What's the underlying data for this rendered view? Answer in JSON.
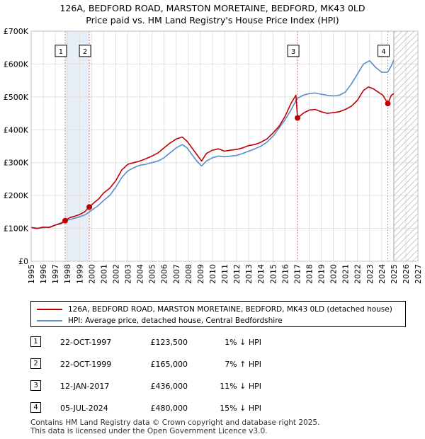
{
  "title_line1": "126A, BEDFORD ROAD, MARSTON MORETAINE, BEDFORD, MK43 0LD",
  "title_line2": "Price paid vs. HM Land Registry's House Price Index (HPI)",
  "colors": {
    "property": "#c00000",
    "hpi": "#5b8cc8",
    "grid": "#e0e0e0",
    "shade": "#e8eef8",
    "vline": "#e08080"
  },
  "chart_data": {
    "type": "line",
    "ylim": [
      0,
      700000
    ],
    "xlim": [
      1995,
      2027
    ],
    "yticks": [
      {
        "value": 0,
        "label": "£0"
      },
      {
        "value": 100000,
        "label": "£100K"
      },
      {
        "value": 200000,
        "label": "£200K"
      },
      {
        "value": 300000,
        "label": "£300K"
      },
      {
        "value": 400000,
        "label": "£400K"
      },
      {
        "value": 500000,
        "label": "£500K"
      },
      {
        "value": 600000,
        "label": "£600K"
      },
      {
        "value": 700000,
        "label": "£700K"
      }
    ],
    "xticks": [
      "1995",
      "1996",
      "1997",
      "1998",
      "1999",
      "2000",
      "2001",
      "2002",
      "2003",
      "2004",
      "2005",
      "2006",
      "2007",
      "2008",
      "2009",
      "2010",
      "2011",
      "2012",
      "2013",
      "2014",
      "2015",
      "2016",
      "2017",
      "2018",
      "2019",
      "2020",
      "2021",
      "2022",
      "2023",
      "2024",
      "2025",
      "2026",
      "2027"
    ],
    "forecast_start": 2025.0,
    "shaded_periods": [
      [
        1997.81,
        1999.81
      ]
    ],
    "series": [
      {
        "name": "126A, BEDFORD ROAD, MARSTON MORETAINE, BEDFORD, MK43 0LD (detached house)",
        "x": [
          1995.0,
          1995.5,
          1996.0,
          1996.5,
          1997.0,
          1997.5,
          1997.81,
          1998.2,
          1998.6,
          1999.0,
          1999.4,
          1999.81,
          2000.2,
          2000.6,
          2001.0,
          2001.5,
          2002.0,
          2002.5,
          2003.0,
          2003.5,
          2004.0,
          2004.5,
          2005.0,
          2005.5,
          2006.0,
          2006.5,
          2007.0,
          2007.5,
          2007.9,
          2008.3,
          2008.7,
          2009.1,
          2009.5,
          2010.0,
          2010.5,
          2011.0,
          2011.5,
          2012.0,
          2012.5,
          2013.0,
          2013.5,
          2014.0,
          2014.5,
          2015.0,
          2015.5,
          2016.0,
          2016.5,
          2016.9,
          2017.04,
          2017.5,
          2018.0,
          2018.5,
          2019.0,
          2019.5,
          2020.0,
          2020.5,
          2021.0,
          2021.5,
          2022.0,
          2022.5,
          2022.9,
          2023.3,
          2023.7,
          2024.1,
          2024.51,
          2024.8,
          2025.0
        ],
        "y": [
          103000,
          100000,
          104000,
          103000,
          110000,
          115000,
          123500,
          133000,
          137000,
          142000,
          150000,
          165000,
          178000,
          190000,
          208000,
          222000,
          245000,
          278000,
          295000,
          300000,
          305000,
          312000,
          320000,
          330000,
          345000,
          360000,
          372000,
          378000,
          365000,
          345000,
          325000,
          305000,
          328000,
          338000,
          342000,
          335000,
          338000,
          340000,
          345000,
          352000,
          355000,
          362000,
          372000,
          390000,
          410000,
          440000,
          480000,
          505000,
          436000,
          450000,
          460000,
          462000,
          455000,
          450000,
          452000,
          455000,
          462000,
          472000,
          490000,
          520000,
          530000,
          525000,
          515000,
          505000,
          480000,
          505000,
          510000
        ]
      },
      {
        "name": "HPI: Average price, detached house, Central Bedfordshire",
        "x": [
          1995.0,
          1995.5,
          1996.0,
          1996.5,
          1997.0,
          1997.5,
          1998.0,
          1998.5,
          1999.0,
          1999.5,
          2000.0,
          2000.5,
          2001.0,
          2001.5,
          2002.0,
          2002.5,
          2003.0,
          2003.5,
          2004.0,
          2004.5,
          2005.0,
          2005.5,
          2006.0,
          2006.5,
          2007.0,
          2007.5,
          2007.9,
          2008.3,
          2008.7,
          2009.1,
          2009.5,
          2010.0,
          2010.5,
          2011.0,
          2011.5,
          2012.0,
          2012.5,
          2013.0,
          2013.5,
          2014.0,
          2014.5,
          2015.0,
          2015.5,
          2016.0,
          2016.5,
          2017.0,
          2017.5,
          2018.0,
          2018.5,
          2019.0,
          2019.5,
          2020.0,
          2020.5,
          2021.0,
          2021.5,
          2022.0,
          2022.5,
          2023.0,
          2023.5,
          2024.0,
          2024.5,
          2024.8,
          2025.0
        ],
        "y": [
          102000,
          100000,
          102000,
          104000,
          110000,
          118000,
          125000,
          130000,
          135000,
          142000,
          155000,
          168000,
          185000,
          200000,
          225000,
          255000,
          275000,
          285000,
          292000,
          295000,
          300000,
          305000,
          315000,
          330000,
          345000,
          355000,
          345000,
          325000,
          305000,
          290000,
          305000,
          315000,
          320000,
          318000,
          320000,
          322000,
          328000,
          335000,
          342000,
          350000,
          362000,
          380000,
          405000,
          430000,
          460000,
          495000,
          505000,
          510000,
          512000,
          508000,
          505000,
          503000,
          505000,
          515000,
          540000,
          570000,
          600000,
          610000,
          590000,
          575000,
          575000,
          595000,
          612000
        ]
      }
    ],
    "sales": [
      {
        "num": "1",
        "x": 1997.81,
        "y": 123500
      },
      {
        "num": "2",
        "x": 1999.81,
        "y": 165000
      },
      {
        "num": "3",
        "x": 2017.04,
        "y": 436000
      },
      {
        "num": "4",
        "x": 2024.51,
        "y": 480000
      }
    ]
  },
  "legend": {
    "property": "126A, BEDFORD ROAD, MARSTON MORETAINE, BEDFORD, MK43 0LD (detached house)",
    "hpi": "HPI: Average price, detached house, Central Bedfordshire"
  },
  "sales_table": [
    {
      "num": "1",
      "date": "22-OCT-1997",
      "price": "£123,500",
      "hpi": "1% ↓ HPI"
    },
    {
      "num": "2",
      "date": "22-OCT-1999",
      "price": "£165,000",
      "hpi": "7% ↑ HPI"
    },
    {
      "num": "3",
      "date": "12-JAN-2017",
      "price": "£436,000",
      "hpi": "11% ↓ HPI"
    },
    {
      "num": "4",
      "date": "05-JUL-2024",
      "price": "£480,000",
      "hpi": "15% ↓ HPI"
    }
  ],
  "footer_line1": "Contains HM Land Registry data © Crown copyright and database right 2025.",
  "footer_line2": "This data is licensed under the Open Government Licence v3.0."
}
